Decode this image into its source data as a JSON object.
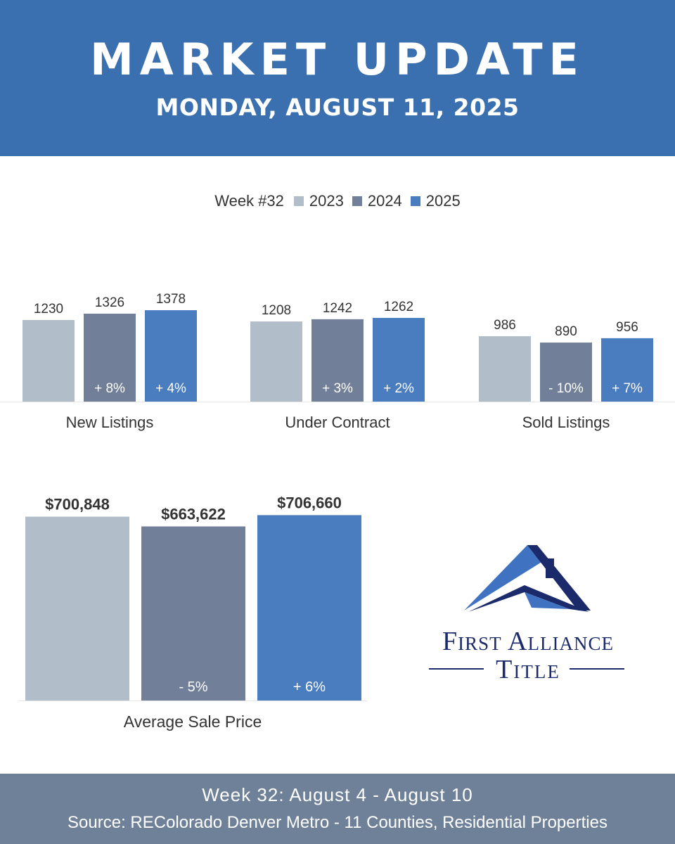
{
  "header": {
    "title": "MARKET UPDATE",
    "date": "MONDAY, AUGUST 11, 2025"
  },
  "legend": {
    "prefix": "Week #32",
    "items": [
      {
        "label": "2023",
        "color": "#b2bdca"
      },
      {
        "label": "2024",
        "color": "#717f98"
      },
      {
        "label": "2025",
        "color": "#4a7cc0"
      }
    ]
  },
  "chart_data": [
    {
      "type": "bar",
      "categories": [
        "New Listings",
        "Under Contract",
        "Sold Listings"
      ],
      "series": [
        {
          "name": "2023",
          "values": [
            1230,
            1208,
            986
          ]
        },
        {
          "name": "2024",
          "values": [
            1326,
            1242,
            890
          ]
        },
        {
          "name": "2025",
          "values": [
            1378,
            1262,
            956
          ]
        }
      ],
      "value_labels": [
        [
          "1230",
          "1326",
          "1378"
        ],
        [
          "1208",
          "1242",
          "1262"
        ],
        [
          "986",
          "890",
          "956"
        ]
      ],
      "change_labels": [
        [
          "",
          "+ 8%",
          "+ 4%"
        ],
        [
          "",
          "+ 3%",
          "+ 2%"
        ],
        [
          "",
          "- 10%",
          "+ 7%"
        ]
      ]
    },
    {
      "type": "bar",
      "categories": [
        "Average Sale Price"
      ],
      "series": [
        {
          "name": "2023",
          "values": [
            700848
          ]
        },
        {
          "name": "2024",
          "values": [
            663622
          ]
        },
        {
          "name": "2025",
          "values": [
            706660
          ]
        }
      ],
      "value_labels": [
        [
          "$700,848",
          "$663,622",
          "$706,660"
        ]
      ],
      "change_labels": [
        [
          "",
          "- 5%",
          "+ 6%"
        ]
      ]
    }
  ],
  "colors": {
    "header_bg": "#3a6fb0",
    "footer_bg": "#6f8099",
    "bar_2023": "#b2bdca",
    "bar_2024": "#717f98",
    "bar_2025": "#4a7cc0",
    "logo_navy": "#1b2a6b",
    "logo_blue": "#3f72c0"
  },
  "logo": {
    "line1": "First Alliance",
    "line2": "Title",
    "icon": "house-roof-logo-icon"
  },
  "footer": {
    "line1": "Week 32: August 4 - August 10",
    "line2": "Source: REColorado Denver Metro - 11 Counties, Residential Properties"
  }
}
